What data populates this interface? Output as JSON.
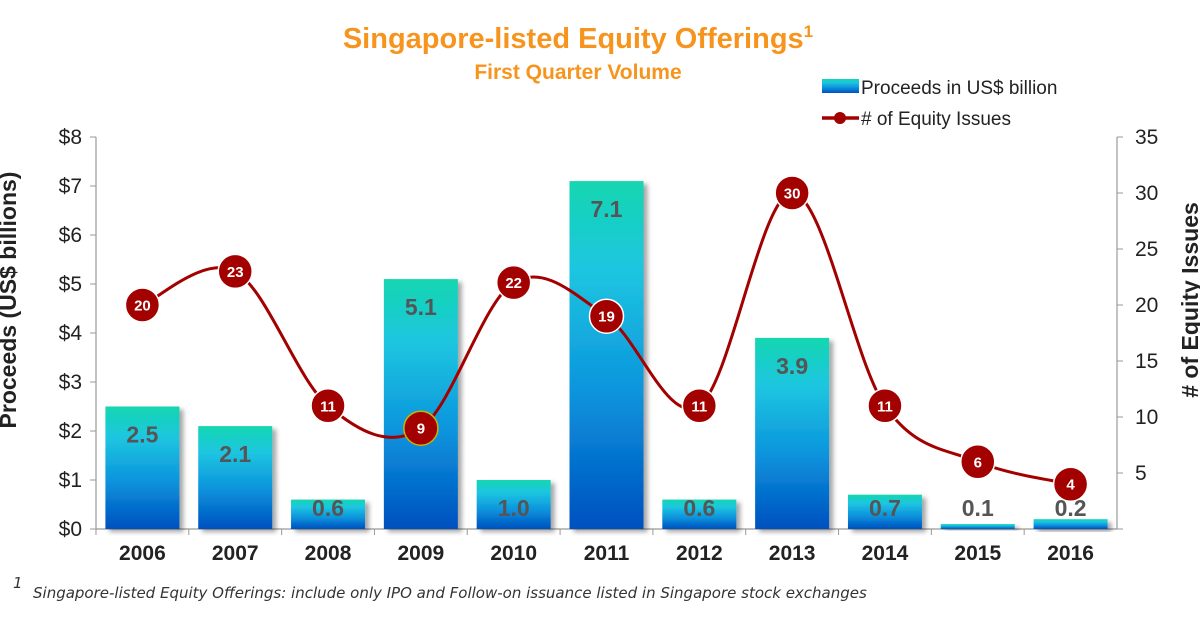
{
  "chart_data": {
    "type": "bar+line",
    "title": "Singapore-listed Equity Offerings",
    "title_superscript": "1",
    "subtitle": "First Quarter Volume",
    "categories": [
      "2006",
      "2007",
      "2008",
      "2009",
      "2010",
      "2011",
      "2012",
      "2013",
      "2014",
      "2015",
      "2016"
    ],
    "series": [
      {
        "name": "Proceeds in US$ billion",
        "type": "bar",
        "axis": "left",
        "values": [
          2.5,
          2.1,
          0.6,
          5.1,
          1.0,
          7.1,
          0.6,
          3.9,
          0.7,
          0.1,
          0.2
        ],
        "labels": [
          "2.5",
          "2.1",
          "0.6",
          "5.1",
          "1.0",
          "7.1",
          "0.6",
          "3.9",
          "0.7",
          "0.1",
          "0.2"
        ],
        "color_top": "#12d6b0",
        "color_bottom": "#0050bf"
      },
      {
        "name": "# of Equity Issues",
        "type": "line",
        "axis": "right",
        "values": [
          20,
          23,
          11,
          9,
          22,
          19,
          11,
          30,
          11,
          6,
          4
        ],
        "labels": [
          "20",
          "23",
          "11",
          "9",
          "22",
          "19",
          "11",
          "30",
          "11",
          "6",
          "4"
        ],
        "color": "#a30000"
      }
    ],
    "ylabel_left": "Proceeds (US$ billions)",
    "ylabel_right": "# of Equity Issues",
    "ylim_left": [
      0,
      8
    ],
    "ylim_right": [
      0,
      35
    ],
    "yticks_left": [
      "$0",
      "$1",
      "$2",
      "$3",
      "$4",
      "$5",
      "$6",
      "$7",
      "$8"
    ],
    "yticks_right": [
      "5",
      "10",
      "15",
      "20",
      "25",
      "30",
      "35"
    ],
    "grid": false,
    "legend_placement": "top-right",
    "title_color": "#f7941d"
  },
  "footnote": {
    "marker": "1",
    "text": "Singapore-listed Equity Offerings: include only IPO and Follow-on issuance listed in Singapore stock exchanges"
  }
}
